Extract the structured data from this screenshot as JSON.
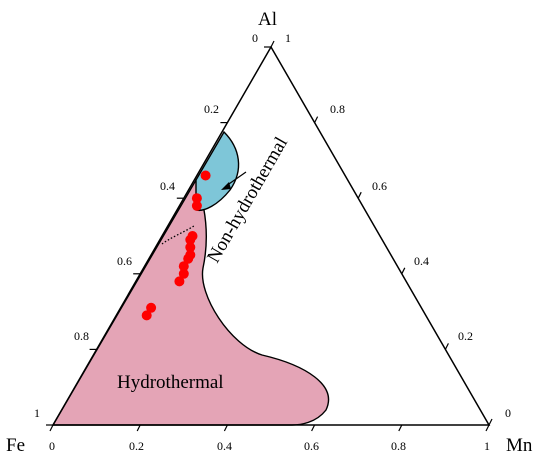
{
  "chart_data": {
    "type": "scatter",
    "plot_kind": "ternary",
    "apex_labels": {
      "top": "Al",
      "left": "Fe",
      "right": "Mn"
    },
    "axes": {
      "bottom": [
        "0",
        "0.2",
        "0.4",
        "0.6",
        "0.8",
        "1"
      ],
      "left": [
        "0",
        "0.2",
        "0.4",
        "0.6",
        "0.8",
        "1"
      ],
      "right": [
        "1",
        "0.8",
        "0.6",
        "0.4",
        "0.2",
        "0"
      ]
    },
    "regions": [
      {
        "name": "Hydrothermal",
        "color": "#e4a4b6"
      },
      {
        "name": "Non-hydrothermal",
        "color": "#7ec6d8"
      }
    ],
    "points": [
      {
        "Al": 0.66,
        "Mn": 0.02,
        "Fe": 0.32
      },
      {
        "Al": 0.6,
        "Mn": 0.03,
        "Fe": 0.37
      },
      {
        "Al": 0.58,
        "Mn": 0.04,
        "Fe": 0.38
      },
      {
        "Al": 0.5,
        "Mn": 0.07,
        "Fe": 0.43
      },
      {
        "Al": 0.49,
        "Mn": 0.07,
        "Fe": 0.44
      },
      {
        "Al": 0.47,
        "Mn": 0.08,
        "Fe": 0.45
      },
      {
        "Al": 0.45,
        "Mn": 0.09,
        "Fe": 0.46
      },
      {
        "Al": 0.44,
        "Mn": 0.09,
        "Fe": 0.47
      },
      {
        "Al": 0.42,
        "Mn": 0.09,
        "Fe": 0.49
      },
      {
        "Al": 0.4,
        "Mn": 0.1,
        "Fe": 0.5
      },
      {
        "Al": 0.38,
        "Mn": 0.1,
        "Fe": 0.52
      },
      {
        "Al": 0.31,
        "Mn": 0.07,
        "Fe": 0.62
      },
      {
        "Al": 0.29,
        "Mn": 0.07,
        "Fe": 0.64
      }
    ],
    "point_color": "#ff0000"
  }
}
